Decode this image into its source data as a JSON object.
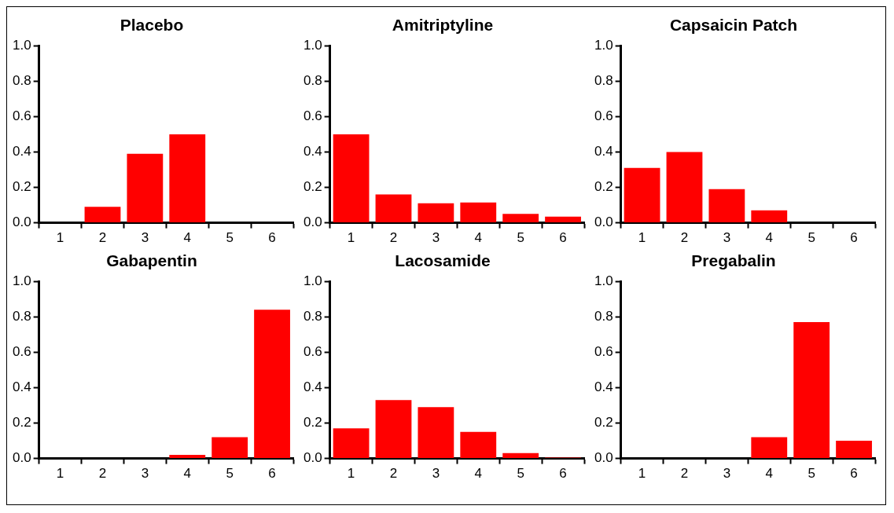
{
  "chart_data": [
    {
      "type": "bar",
      "title": "Placebo",
      "categories": [
        "1",
        "2",
        "3",
        "4",
        "5",
        "6"
      ],
      "values": [
        0,
        0.09,
        0.39,
        0.5,
        0,
        0
      ],
      "color": "#ff0000",
      "ylim": [
        0,
        1
      ],
      "yticks": [
        {
          "value": 0,
          "label": "0.0"
        },
        {
          "value": 0.2,
          "label": "0.2"
        },
        {
          "value": 0.4,
          "label": "0.4"
        },
        {
          "value": 0.6,
          "label": "0.6"
        },
        {
          "value": 0.8,
          "label": "0.8"
        },
        {
          "value": 1,
          "label": "1.0"
        }
      ],
      "grid": false
    },
    {
      "type": "bar",
      "title": "Amitriptyline",
      "categories": [
        "1",
        "2",
        "3",
        "4",
        "5",
        "6"
      ],
      "values": [
        0.5,
        0.16,
        0.11,
        0.115,
        0.05,
        0.035
      ],
      "color": "#ff0000",
      "ylim": [
        0,
        1
      ],
      "yticks": [
        {
          "value": 0,
          "label": "0.0"
        },
        {
          "value": 0.2,
          "label": "0.2"
        },
        {
          "value": 0.4,
          "label": "0.4"
        },
        {
          "value": 0.6,
          "label": "0.6"
        },
        {
          "value": 0.8,
          "label": "0.8"
        },
        {
          "value": 1,
          "label": "1.0"
        }
      ],
      "grid": false
    },
    {
      "type": "bar",
      "title": "Capsaicin Patch",
      "categories": [
        "1",
        "2",
        "3",
        "4",
        "5",
        "6"
      ],
      "values": [
        0.31,
        0.4,
        0.19,
        0.07,
        0,
        0
      ],
      "color": "#ff0000",
      "ylim": [
        0,
        1
      ],
      "yticks": [
        {
          "value": 0,
          "label": "0.0"
        },
        {
          "value": 0.2,
          "label": "0.2"
        },
        {
          "value": 0.4,
          "label": "0.4"
        },
        {
          "value": 0.6,
          "label": "0.6"
        },
        {
          "value": 0.8,
          "label": "0.8"
        },
        {
          "value": 1,
          "label": "1.0"
        }
      ],
      "grid": false
    },
    {
      "type": "bar",
      "title": "Gabapentin",
      "categories": [
        "1",
        "2",
        "3",
        "4",
        "5",
        "6"
      ],
      "values": [
        0,
        0,
        0,
        0.02,
        0.12,
        0.84
      ],
      "color": "#ff0000",
      "ylim": [
        0,
        1
      ],
      "yticks": [
        {
          "value": 0,
          "label": "0.0"
        },
        {
          "value": 0.2,
          "label": "0.2"
        },
        {
          "value": 0.4,
          "label": "0.4"
        },
        {
          "value": 0.6,
          "label": "0.6"
        },
        {
          "value": 0.8,
          "label": "0.8"
        },
        {
          "value": 1,
          "label": "1.0"
        }
      ],
      "grid": false
    },
    {
      "type": "bar",
      "title": "Lacosamide",
      "categories": [
        "1",
        "2",
        "3",
        "4",
        "5",
        "6"
      ],
      "values": [
        0.17,
        0.33,
        0.29,
        0.15,
        0.03,
        0.005
      ],
      "color": "#ff0000",
      "ylim": [
        0,
        1
      ],
      "yticks": [
        {
          "value": 0,
          "label": "0.0"
        },
        {
          "value": 0.2,
          "label": "0.2"
        },
        {
          "value": 0.4,
          "label": "0.4"
        },
        {
          "value": 0.6,
          "label": "0.6"
        },
        {
          "value": 0.8,
          "label": "0.8"
        },
        {
          "value": 1,
          "label": "1.0"
        }
      ],
      "grid": false
    },
    {
      "type": "bar",
      "title": "Pregabalin",
      "categories": [
        "1",
        "2",
        "3",
        "4",
        "5",
        "6"
      ],
      "values": [
        0,
        0,
        0,
        0.12,
        0.77,
        0.1
      ],
      "color": "#ff0000",
      "ylim": [
        0,
        1
      ],
      "yticks": [
        {
          "value": 0,
          "label": "0.0"
        },
        {
          "value": 0.2,
          "label": "0.2"
        },
        {
          "value": 0.4,
          "label": "0.4"
        },
        {
          "value": 0.6,
          "label": "0.6"
        },
        {
          "value": 0.8,
          "label": "0.8"
        },
        {
          "value": 1,
          "label": "1.0"
        }
      ],
      "grid": false
    }
  ]
}
